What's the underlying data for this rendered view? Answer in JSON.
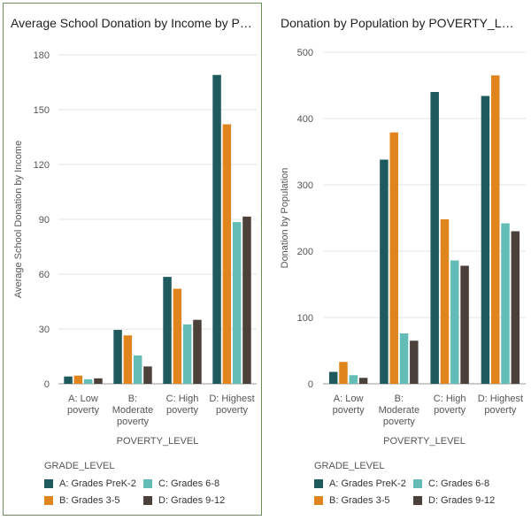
{
  "colors": {
    "A: Grades PreK-2": "#1f5a5f",
    "B: Grades 3-5": "#e0851d",
    "C: Grades 6-8": "#63bdb6",
    "D: Grades 9-12": "#4b403a",
    "grid": "#e6e6e6",
    "axis": "#555555",
    "panel_border": "#6b8e5a"
  },
  "legend": {
    "title": "GRADE_LEVEL",
    "items": [
      {
        "label": "A: Grades PreK-2",
        "color": "#1f5a5f"
      },
      {
        "label": "C: Grades 6-8",
        "color": "#63bdb6"
      },
      {
        "label": "B: Grades 3-5",
        "color": "#e0851d"
      },
      {
        "label": "D: Grades 9-12",
        "color": "#4b403a"
      }
    ]
  },
  "chart_data": [
    {
      "type": "bar",
      "title": "Average School Donation by Income by P…",
      "xlabel": "POVERTY_LEVEL",
      "ylabel": "Average School Donation by Income",
      "categories": [
        [
          "A: Low",
          "poverty"
        ],
        [
          "B:",
          "Moderate",
          "poverty"
        ],
        [
          "C: High",
          "poverty"
        ],
        [
          "D: Highest",
          "poverty"
        ]
      ],
      "ylim": [
        0,
        180
      ],
      "yticks": [
        0,
        30,
        60,
        90,
        120,
        150,
        180
      ],
      "series": [
        {
          "name": "A: Grades PreK-2",
          "values": [
            4,
            29.5,
            58.5,
            169
          ]
        },
        {
          "name": "B: Grades 3-5",
          "values": [
            4.5,
            26.5,
            52,
            142
          ]
        },
        {
          "name": "C: Grades 6-8",
          "values": [
            2.5,
            15.5,
            32.5,
            88.5
          ]
        },
        {
          "name": "D: Grades 9-12",
          "values": [
            3,
            9.5,
            35,
            91.5
          ]
        }
      ]
    },
    {
      "type": "bar",
      "title": "Donation by Population by POVERTY_LEV…",
      "xlabel": "POVERTY_LEVEL",
      "ylabel": "Donation by Population",
      "categories": [
        [
          "A: Low",
          "poverty"
        ],
        [
          "B:",
          "Moderate",
          "poverty"
        ],
        [
          "C: High",
          "poverty"
        ],
        [
          "D: Highest",
          "poverty"
        ]
      ],
      "ylim": [
        0,
        500
      ],
      "yticks": [
        0,
        100,
        200,
        300,
        400,
        500
      ],
      "series": [
        {
          "name": "A: Grades PreK-2",
          "values": [
            18,
            338,
            440,
            434
          ]
        },
        {
          "name": "B: Grades 3-5",
          "values": [
            33,
            379,
            248,
            465
          ]
        },
        {
          "name": "C: Grades 6-8",
          "values": [
            13,
            76,
            186,
            242
          ]
        },
        {
          "name": "D: Grades 9-12",
          "values": [
            9,
            65,
            178,
            230
          ]
        }
      ]
    }
  ]
}
